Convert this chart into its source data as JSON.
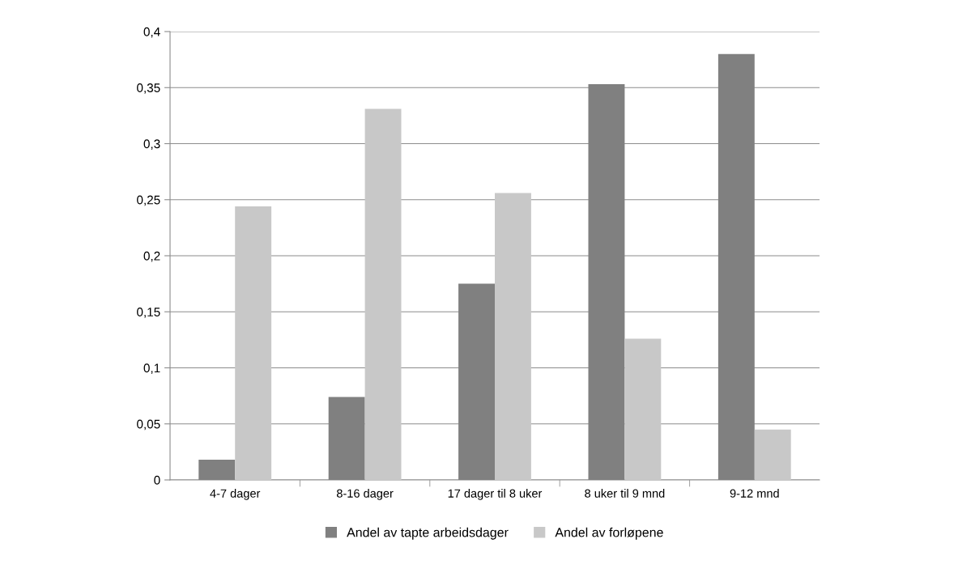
{
  "chart_data": {
    "type": "bar",
    "categories": [
      "4-7 dager",
      "8-16 dager",
      "17 dager til 8 uker",
      "8 uker til 9 mnd",
      "9-12 mnd"
    ],
    "series": [
      {
        "name": "Andel av tapte arbeidsdager",
        "color": "#808080",
        "values": [
          0.018,
          0.074,
          0.175,
          0.353,
          0.38
        ]
      },
      {
        "name": "Andel av forløpene",
        "color": "#c8c8c8",
        "values": [
          0.244,
          0.331,
          0.256,
          0.126,
          0.045
        ]
      }
    ],
    "ylim": [
      0,
      0.4
    ],
    "yticks": [
      {
        "value": 0,
        "label": "0"
      },
      {
        "value": 0.05,
        "label": "0,05"
      },
      {
        "value": 0.1,
        "label": "0,1"
      },
      {
        "value": 0.15,
        "label": "0,15"
      },
      {
        "value": 0.2,
        "label": "0,2"
      },
      {
        "value": 0.25,
        "label": "0,25"
      },
      {
        "value": 0.3,
        "label": "0,3"
      },
      {
        "value": 0.35,
        "label": "0,35"
      },
      {
        "value": 0.4,
        "label": "0,4"
      }
    ],
    "grid": "y",
    "legend": "bottom"
  }
}
